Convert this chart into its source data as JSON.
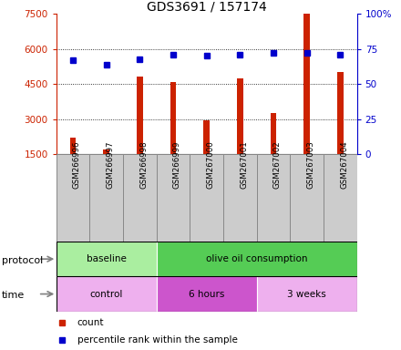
{
  "title": "GDS3691 / 157174",
  "samples": [
    "GSM266996",
    "GSM266997",
    "GSM266998",
    "GSM266999",
    "GSM267000",
    "GSM267001",
    "GSM267002",
    "GSM267003",
    "GSM267004"
  ],
  "bar_values": [
    2200,
    1700,
    4800,
    4600,
    2950,
    4750,
    3250,
    7500,
    5000
  ],
  "percentile_values": [
    67,
    64,
    68,
    71,
    70,
    71,
    72,
    72,
    71
  ],
  "ylim_left": [
    1500,
    7500
  ],
  "ylim_right": [
    0,
    100
  ],
  "yticks_left": [
    1500,
    3000,
    4500,
    6000,
    7500
  ],
  "yticks_right": [
    0,
    25,
    50,
    75,
    100
  ],
  "bar_color": "#CC2200",
  "percentile_color": "#0000CC",
  "protocol_groups": [
    {
      "label": "baseline",
      "start": 0,
      "end": 3,
      "color": "#AAEEA0"
    },
    {
      "label": "olive oil consumption",
      "start": 3,
      "end": 9,
      "color": "#55CC55"
    }
  ],
  "time_groups": [
    {
      "label": "control",
      "start": 0,
      "end": 3,
      "color": "#EEB0EE"
    },
    {
      "label": "6 hours",
      "start": 3,
      "end": 6,
      "color": "#CC55CC"
    },
    {
      "label": "3 weeks",
      "start": 6,
      "end": 9,
      "color": "#EEB0EE"
    }
  ],
  "legend_count_label": "count",
  "legend_pct_label": "percentile rank within the sample",
  "left_axis_color": "#CC2200",
  "right_axis_color": "#0000CC",
  "label_box_color": "#CCCCCC",
  "sample_box_border": "#888888"
}
